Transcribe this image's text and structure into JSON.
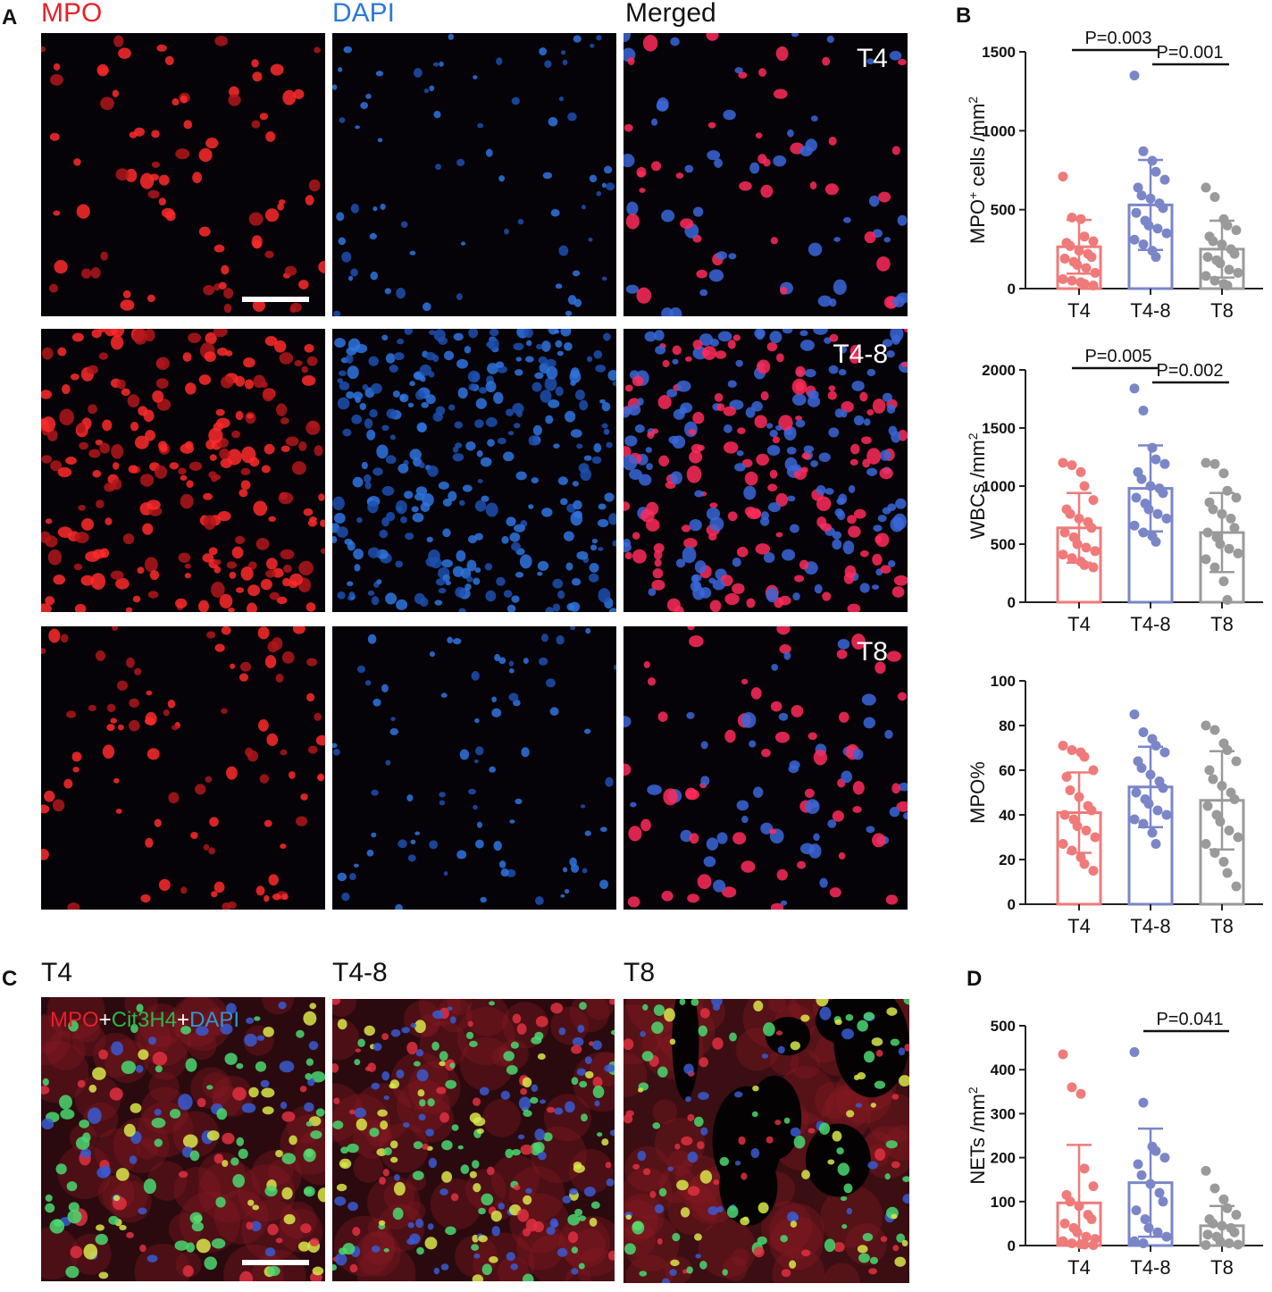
{
  "panels": {
    "A": "A",
    "B": "B",
    "C": "C",
    "D": "D"
  },
  "panelA": {
    "columns": [
      {
        "label": "MPO",
        "color": "#e8202a"
      },
      {
        "label": "DAPI",
        "color": "#2a7ad8"
      },
      {
        "label": "Merged",
        "color": "#111111"
      }
    ],
    "rows": [
      "T4",
      "T4-8",
      "T8"
    ]
  },
  "panelC": {
    "columns": [
      "T4",
      "T4-8",
      "T8"
    ],
    "legend": {
      "mpo": "MPO",
      "plus1": "+",
      "cit": "Cit3H4",
      "plus2": "+",
      "dapi": "DAPI"
    },
    "legend_colors": {
      "mpo": "#e8202a",
      "cit": "#2ab84a",
      "dapi": "#2a9ad8",
      "plus": "#ffffff"
    }
  },
  "colors": {
    "T4": "#f07a7a",
    "T4-8": "#7a86c8",
    "T8": "#9a9a9a"
  },
  "chart_data": [
    {
      "type": "bar",
      "panel": "B",
      "ylabel_main": "MPO",
      "ylabel_sup": "+",
      "ylabel_rest": " cells /mm",
      "ylabel_exp": "2",
      "categories": [
        "T4",
        "T4-8",
        "T8"
      ],
      "means": [
        265,
        530,
        250
      ],
      "sd": [
        170,
        285,
        180
      ],
      "ylim": [
        0,
        1500
      ],
      "yticks": [
        0,
        500,
        1000,
        1500
      ],
      "points": [
        [
          710,
          450,
          440,
          330,
          300,
          290,
          270,
          240,
          220,
          200,
          190,
          170,
          150,
          130,
          100,
          60,
          50,
          40,
          30,
          20
        ],
        [
          1350,
          870,
          810,
          740,
          690,
          640,
          590,
          570,
          540,
          510,
          480,
          430,
          400,
          380,
          350,
          310,
          280,
          240,
          200
        ],
        [
          640,
          580,
          440,
          400,
          370,
          330,
          300,
          280,
          250,
          220,
          200,
          180,
          160,
          120,
          100,
          80,
          50,
          30,
          20
        ]
      ],
      "brackets": [
        {
          "from": 0,
          "to": 1,
          "label": "P=0.003"
        },
        {
          "from": 1,
          "to": 2,
          "label": "P=0.001"
        }
      ]
    },
    {
      "type": "bar",
      "panel": "B",
      "ylabel_main": "WBCs /mm",
      "ylabel_exp": "2",
      "categories": [
        "T4",
        "T4-8",
        "T8"
      ],
      "means": [
        640,
        980,
        600
      ],
      "sd": [
        300,
        370,
        340
      ],
      "ylim": [
        0,
        2000
      ],
      "yticks": [
        0,
        500,
        1000,
        1500,
        2000
      ],
      "points": [
        [
          1200,
          1180,
          1120,
          1000,
          880,
          800,
          760,
          720,
          690,
          640,
          600,
          560,
          500,
          470,
          440,
          410,
          380,
          350,
          320,
          300
        ],
        [
          1840,
          1650,
          1330,
          1230,
          1190,
          1120,
          1060,
          1000,
          980,
          940,
          900,
          850,
          800,
          760,
          720,
          660,
          600,
          570,
          520
        ],
        [
          1200,
          1190,
          1110,
          960,
          900,
          860,
          800,
          760,
          720,
          640,
          600,
          560,
          500,
          460,
          420,
          370,
          300,
          180,
          20
        ]
      ],
      "brackets": [
        {
          "from": 0,
          "to": 1,
          "label": "P=0.005"
        },
        {
          "from": 1,
          "to": 2,
          "label": "P=0.002"
        }
      ]
    },
    {
      "type": "bar",
      "panel": "B",
      "ylabel_main": "MPO%",
      "categories": [
        "T4",
        "T4-8",
        "T8"
      ],
      "means": [
        41,
        52.5,
        46.5
      ],
      "sd": [
        18,
        18,
        22
      ],
      "ylim": [
        0,
        100
      ],
      "yticks": [
        0,
        20,
        40,
        60,
        80,
        100
      ],
      "points": [
        [
          71,
          69,
          68,
          66,
          60,
          57,
          51,
          48,
          44,
          42,
          40,
          38,
          35,
          33,
          30,
          27,
          24,
          21,
          18,
          15
        ],
        [
          85,
          77,
          74,
          71,
          68,
          64,
          61,
          58,
          55,
          52,
          50,
          47,
          45,
          42,
          40,
          38,
          36,
          32,
          27
        ],
        [
          80,
          78,
          72,
          69,
          64,
          60,
          56,
          53,
          50,
          47,
          44,
          40,
          37,
          33,
          30,
          27,
          23,
          19,
          14,
          8
        ]
      ],
      "brackets": []
    },
    {
      "type": "bar",
      "panel": "D",
      "ylabel_main": "NETs /mm",
      "ylabel_exp": "2",
      "categories": [
        "T4",
        "T4-8",
        "T8"
      ],
      "means": [
        97,
        143,
        45
      ],
      "sd": [
        132,
        123,
        45
      ],
      "ylim": [
        0,
        500
      ],
      "yticks": [
        0,
        100,
        200,
        300,
        400,
        500
      ],
      "points": [
        [
          435,
          360,
          345,
          175,
          135,
          115,
          100,
          90,
          70,
          60,
          50,
          40,
          30,
          20,
          15,
          10,
          5,
          3,
          2,
          1
        ],
        [
          440,
          325,
          225,
          215,
          200,
          185,
          160,
          140,
          120,
          100,
          80,
          60,
          40,
          30,
          20,
          10,
          5
        ],
        [
          170,
          130,
          105,
          85,
          70,
          60,
          50,
          45,
          40,
          30,
          25,
          20,
          10,
          5,
          2,
          1
        ]
      ],
      "brackets": [
        {
          "from": 1,
          "to": 2,
          "label": "P=0.041"
        }
      ]
    }
  ]
}
